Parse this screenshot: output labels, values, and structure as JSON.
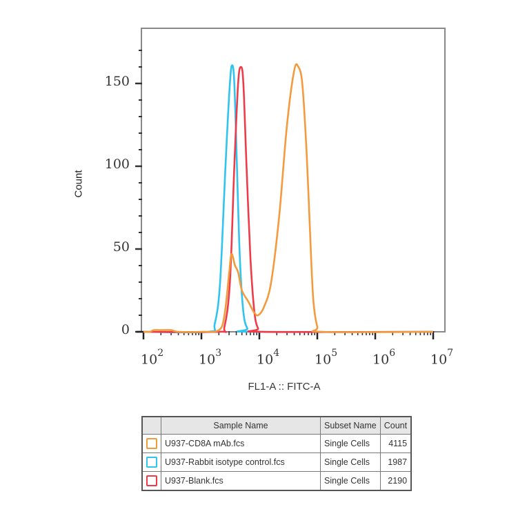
{
  "chart_data": {
    "type": "line",
    "title": "",
    "xlabel": "FL1-A :: FITC-A",
    "ylabel": "Count",
    "xscale": "log",
    "xlim": [
      100,
      10000000
    ],
    "ylim": [
      0,
      175
    ],
    "x_tick_labels": [
      "10^2",
      "10^3",
      "10^4",
      "10^5",
      "10^6",
      "10^7"
    ],
    "y_tick_labels": [
      "0",
      "50",
      "100",
      "150"
    ],
    "grid": false,
    "legend_position": "table below plot",
    "series": [
      {
        "name": "U937-CD8A mAb.fcs",
        "color": "#f39a3c",
        "subset": "Single Cells",
        "count": 4115,
        "peak_x": 47000,
        "peak_y": 160,
        "points": [
          [
            100,
            0
          ],
          [
            130,
            0
          ],
          [
            150,
            1
          ],
          [
            200,
            1
          ],
          [
            300,
            1
          ],
          [
            400,
            0
          ],
          [
            1000,
            0
          ],
          [
            2000,
            1
          ],
          [
            2500,
            10
          ],
          [
            3000,
            35
          ],
          [
            3300,
            47
          ],
          [
            3800,
            40
          ],
          [
            4300,
            36
          ],
          [
            5000,
            25
          ],
          [
            6500,
            18
          ],
          [
            8000,
            12
          ],
          [
            9500,
            10
          ],
          [
            12000,
            15
          ],
          [
            16000,
            30
          ],
          [
            22000,
            70
          ],
          [
            30000,
            125
          ],
          [
            40000,
            158
          ],
          [
            47000,
            160
          ],
          [
            55000,
            150
          ],
          [
            65000,
            110
          ],
          [
            75000,
            60
          ],
          [
            85000,
            20
          ],
          [
            100000,
            3
          ],
          [
            120000,
            0
          ],
          [
            10000000,
            0
          ]
        ]
      },
      {
        "name": "U937-Rabbit isotype control.fcs",
        "color": "#2ec4ef",
        "subset": "Single Cells",
        "count": 1987,
        "peak_x": 3400,
        "peak_y": 161,
        "points": [
          [
            100,
            0
          ],
          [
            1300,
            0
          ],
          [
            1700,
            5
          ],
          [
            2100,
            30
          ],
          [
            2600,
            100
          ],
          [
            3100,
            150
          ],
          [
            3400,
            161
          ],
          [
            3700,
            150
          ],
          [
            4100,
            100
          ],
          [
            4600,
            45
          ],
          [
            5300,
            12
          ],
          [
            6200,
            2
          ],
          [
            7500,
            0
          ],
          [
            10000000,
            0
          ]
        ]
      },
      {
        "name": "U937-Blank.fcs",
        "color": "#ee3b4a",
        "subset": "Single Cells",
        "count": 2190,
        "peak_x": 4800,
        "peak_y": 160,
        "points": [
          [
            100,
            0
          ],
          [
            2000,
            0
          ],
          [
            2500,
            3
          ],
          [
            3100,
            30
          ],
          [
            3700,
            100
          ],
          [
            4300,
            150
          ],
          [
            4800,
            160
          ],
          [
            5300,
            150
          ],
          [
            6000,
            100
          ],
          [
            7000,
            45
          ],
          [
            8200,
            12
          ],
          [
            9500,
            2
          ],
          [
            11000,
            0
          ],
          [
            10000000,
            0
          ]
        ]
      }
    ]
  },
  "axes": {
    "ylabel": "Count",
    "xlabel": "FL1-A :: FITC-A",
    "yticks": [
      {
        "label": "0",
        "value": 0
      },
      {
        "label": "50",
        "value": 50
      },
      {
        "label": "100",
        "value": 100
      },
      {
        "label": "150",
        "value": 150
      }
    ],
    "xticks": [
      {
        "base": "10",
        "exp": "2"
      },
      {
        "base": "10",
        "exp": "3"
      },
      {
        "base": "10",
        "exp": "4"
      },
      {
        "base": "10",
        "exp": "5"
      },
      {
        "base": "10",
        "exp": "6"
      },
      {
        "base": "10",
        "exp": "7"
      }
    ]
  },
  "legend": {
    "headers": {
      "swatch": "",
      "sample": "Sample Name",
      "subset": "Subset Name",
      "count": "Count"
    },
    "rows": [
      {
        "color": "#f39a3c",
        "sample": "U937-CD8A mAb.fcs",
        "subset": "Single Cells",
        "count": "4115"
      },
      {
        "color": "#2ec4ef",
        "sample": "U937-Rabbit isotype control.fcs",
        "subset": "Single Cells",
        "count": "1987"
      },
      {
        "color": "#ee3b4a",
        "sample": "U937-Blank.fcs",
        "subset": "Single Cells",
        "count": "2190"
      }
    ]
  }
}
